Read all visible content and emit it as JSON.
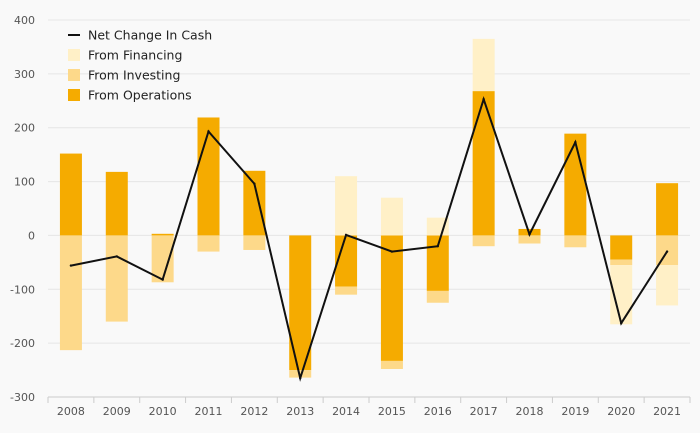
{
  "chart_data": {
    "type": "bar",
    "categories": [
      "2008",
      "2009",
      "2010",
      "2011",
      "2012",
      "2013",
      "2014",
      "2015",
      "2016",
      "2017",
      "2018",
      "2019",
      "2020",
      "2021"
    ],
    "series": [
      {
        "name": "From Operations",
        "color": "#f5ab00",
        "values": [
          152,
          118,
          3,
          219,
          120,
          -250,
          -95,
          -233,
          -103,
          268,
          12,
          189,
          -45,
          97
        ]
      },
      {
        "name": "From Investing",
        "color": "#fdd98a",
        "values": [
          -213,
          -160,
          -87,
          -30,
          -27,
          -14,
          -15,
          -15,
          -22,
          -20,
          -15,
          -22,
          -10,
          -55
        ]
      },
      {
        "name": "From Financing",
        "color": "#fff0c7",
        "values": [
          0,
          0,
          0,
          0,
          0,
          0,
          110,
          70,
          33,
          97,
          0,
          0,
          -110,
          -75
        ]
      }
    ],
    "line": {
      "name": "Net Change In Cash",
      "color": "#111111",
      "values": [
        -56,
        -39,
        -82,
        193,
        96,
        -265,
        1,
        -30,
        -20,
        253,
        2,
        173,
        -163,
        -30
      ]
    },
    "yticks": [
      400,
      300,
      200,
      100,
      0,
      -100,
      -200,
      -300
    ],
    "ytick_labels": [
      "400",
      "300",
      "200",
      "100",
      "0",
      "-100",
      "-200",
      "-300"
    ],
    "ylim": [
      -300,
      400
    ],
    "grid": true,
    "legend_position": "top-left",
    "title": "",
    "xlabel": "",
    "ylabel": ""
  }
}
